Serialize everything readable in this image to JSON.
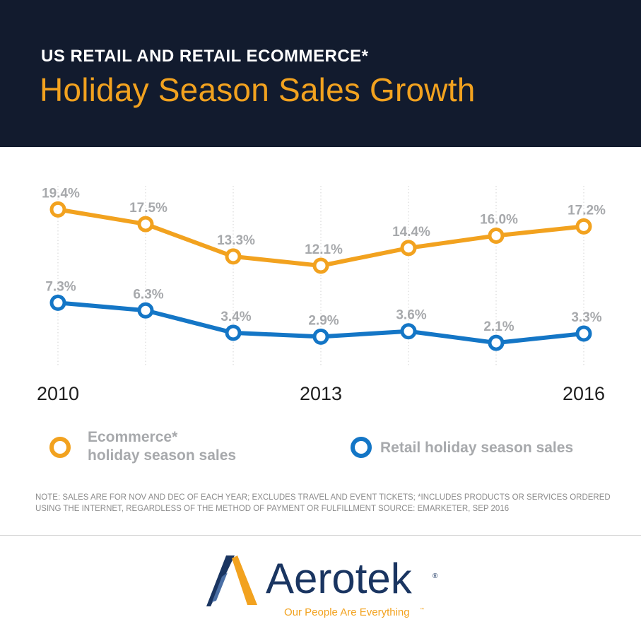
{
  "header": {
    "kicker": "US RETAIL AND RETAIL ECOMMERCE*",
    "title": "Holiday Season Sales Growth"
  },
  "chart_data": {
    "type": "line",
    "title": "Holiday Season Sales Growth",
    "subtitle": "US RETAIL AND RETAIL ECOMMERCE*",
    "x": [
      2010,
      2011,
      2012,
      2013,
      2014,
      2015,
      2016
    ],
    "x_tick_labels": [
      "2010",
      "",
      "",
      "2013",
      "",
      "",
      "2016"
    ],
    "series": [
      {
        "name": "Ecommerce* holiday season sales",
        "color": "#f2a21f",
        "values": [
          19.4,
          17.5,
          13.3,
          12.1,
          14.4,
          16.0,
          17.2
        ],
        "labels": [
          "19.4%",
          "17.5%",
          "13.3%",
          "12.1%",
          "14.4%",
          "16.0%",
          "17.2%"
        ]
      },
      {
        "name": "Retail holiday season sales",
        "color": "#1476c6",
        "values": [
          7.3,
          6.3,
          3.4,
          2.9,
          3.6,
          2.1,
          3.3
        ],
        "labels": [
          "7.3%",
          "6.3%",
          "3.4%",
          "2.9%",
          "3.6%",
          "2.1%",
          "3.3%"
        ]
      }
    ],
    "xlabel": "",
    "ylabel": "",
    "ylim": [
      0,
      22
    ],
    "grid": true,
    "legend": "bottom"
  },
  "legend": {
    "ecommerce_line1": "Ecommerce*",
    "ecommerce_line2": "holiday season sales",
    "retail": "Retail holiday season sales"
  },
  "note": "NOTE: SALES ARE FOR NOV AND DEC OF EACH YEAR; EXCLUDES TRAVEL AND EVENT TICKETS; *INCLUDES PRODUCTS OR SERVICES ORDERED USING THE INTERNET, REGARDLESS OF THE METHOD OF PAYMENT OR FULFILLMENT SOURCE: EMARKETER, SEP 2016",
  "brand": {
    "name": "Aerotek",
    "registered": "®",
    "tagline": "Our People Are Everything",
    "trademark": "™"
  },
  "colors": {
    "header_bg": "#121b2e",
    "accent_orange": "#f2a21f",
    "accent_blue": "#1476c6",
    "label_gray": "#a7a9ac",
    "brand_navy": "#1a3561"
  }
}
